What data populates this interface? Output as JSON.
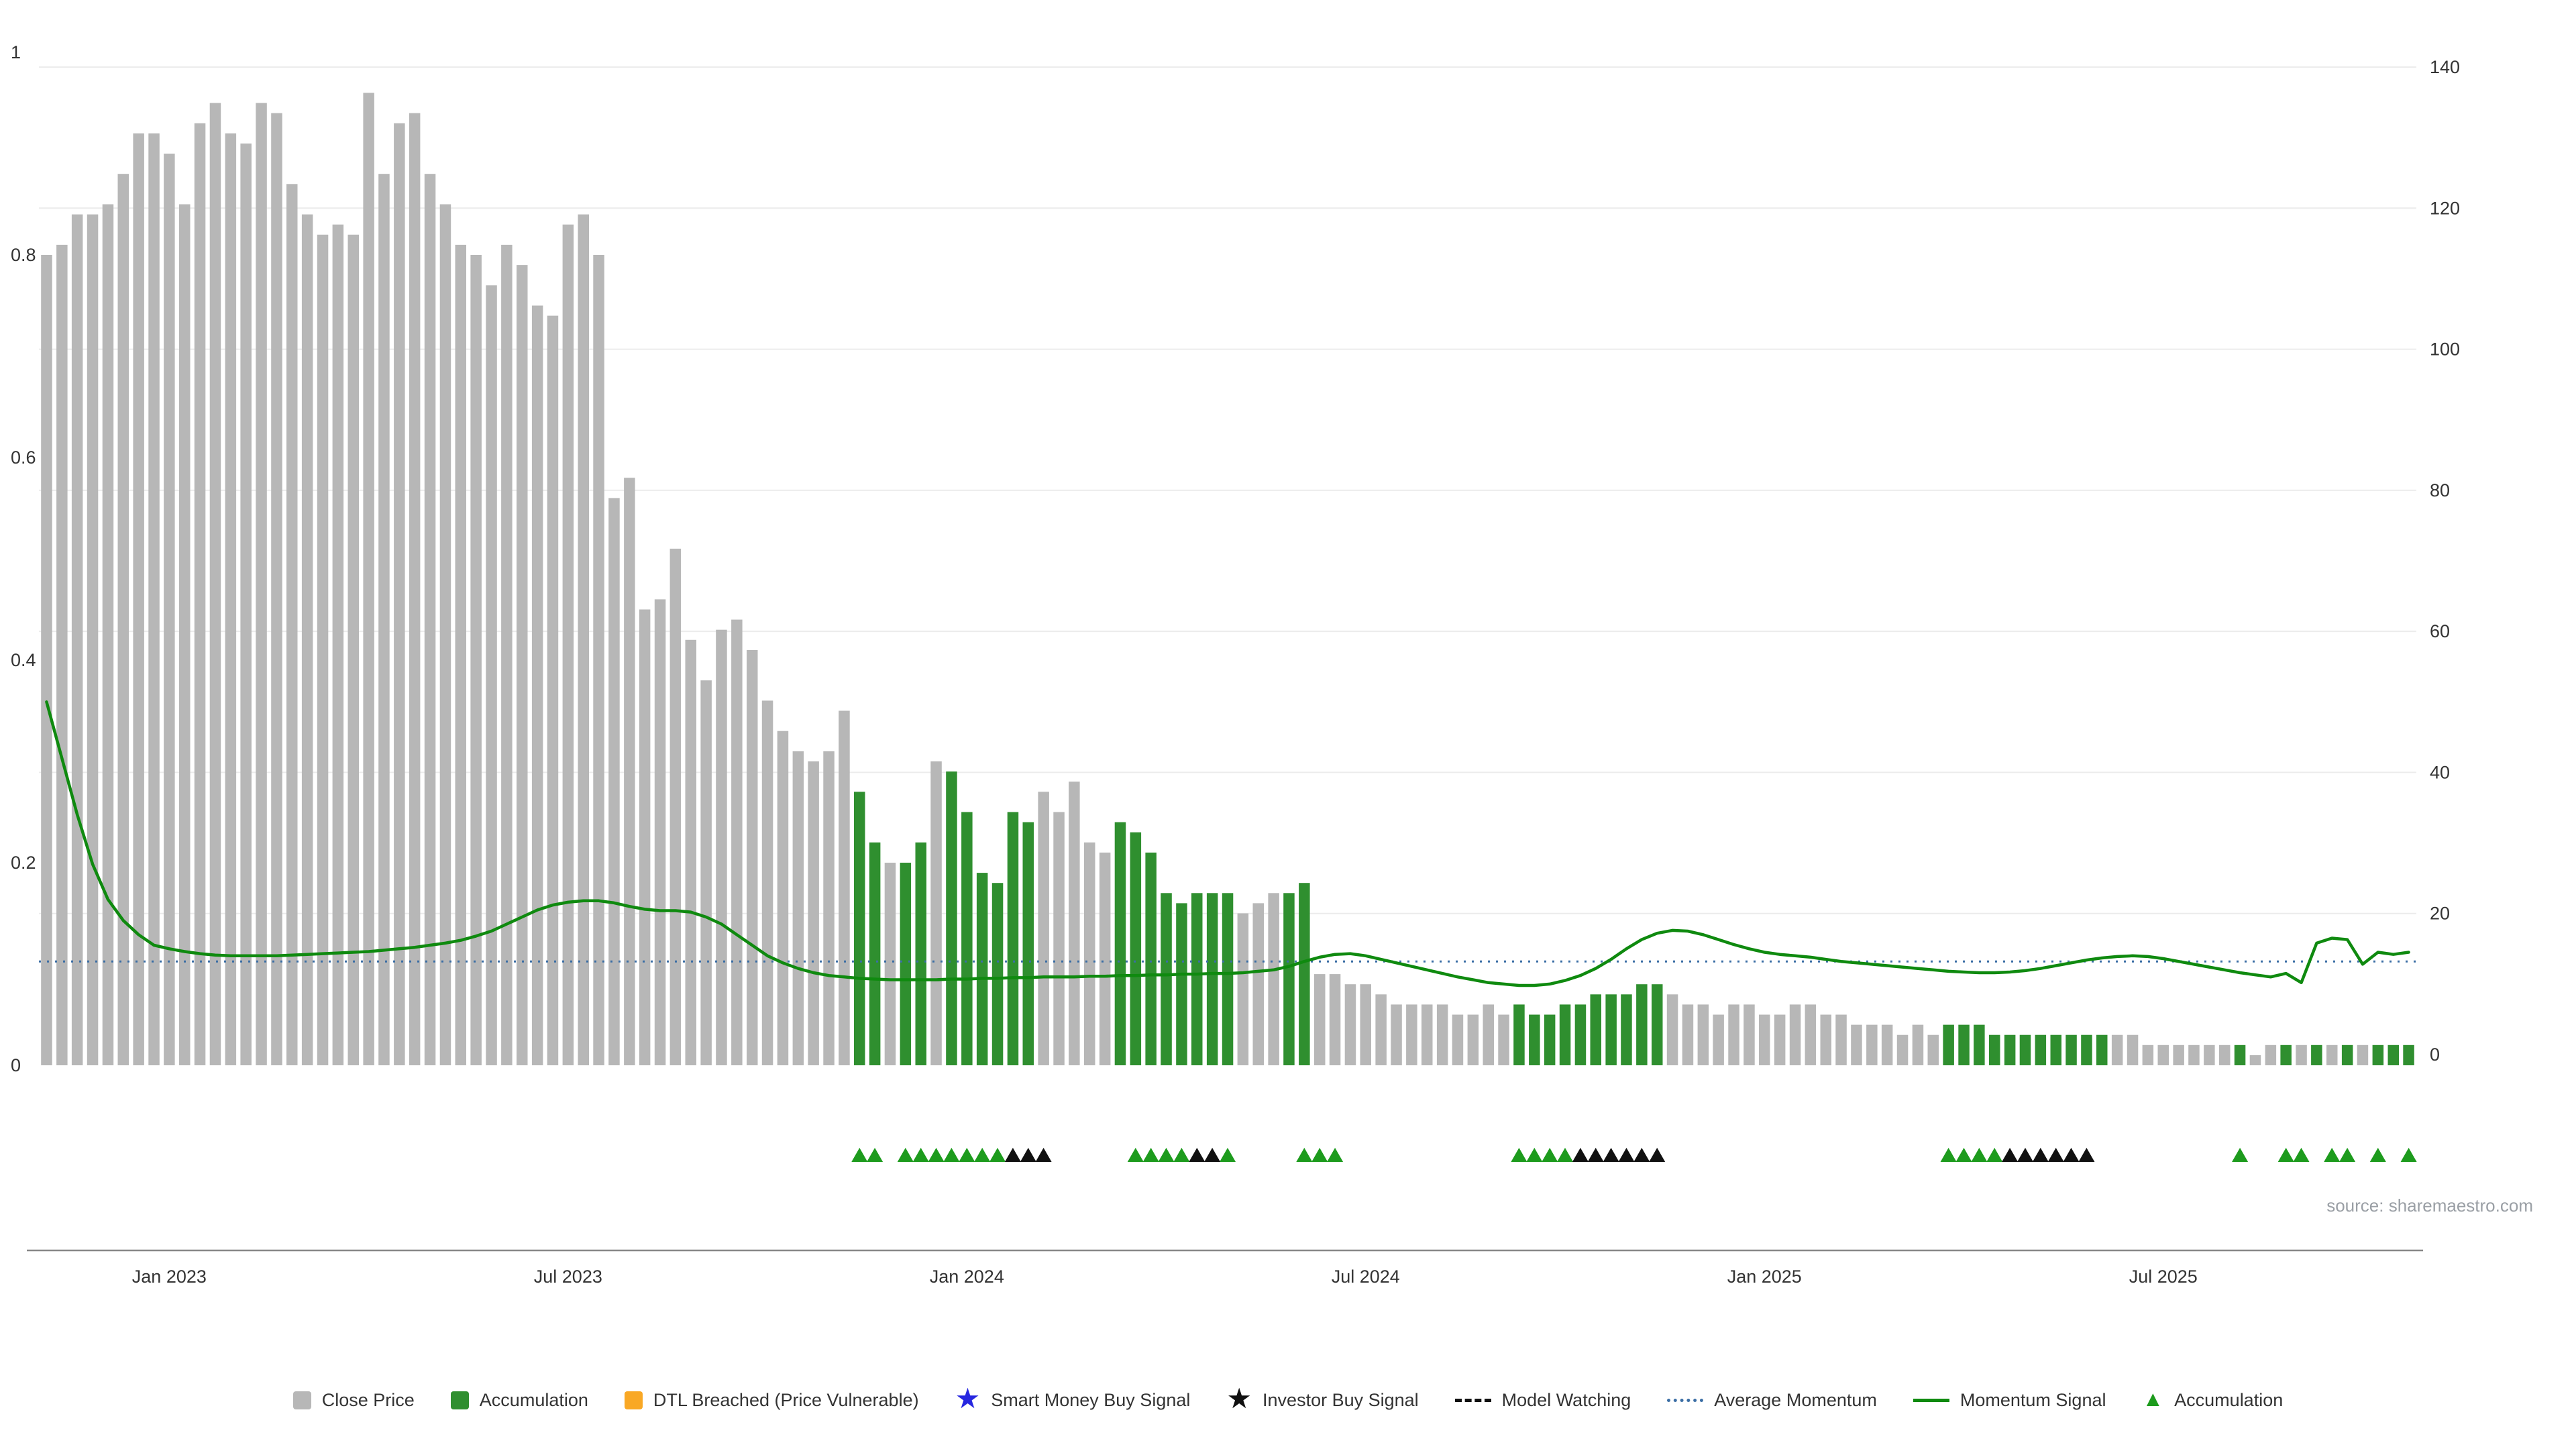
{
  "source": "source: sharemaestro.com",
  "colors": {
    "close_price": "#b7b7b7",
    "accumulation": "#2f8f2f",
    "accumulation_marker": "#1d9b1d",
    "dtl_breached": "#f9a825",
    "smart_money": "#2727e0",
    "investor": "#111111",
    "momentum_line": "#0f8a0f",
    "average_momentum": "#3b6ea5",
    "grid": "#ececec",
    "axis_line": "#888888",
    "axis_text": "#333333"
  },
  "legend": {
    "items": [
      {
        "label": "Close Price",
        "swatch": "square",
        "color": "#b7b7b7",
        "name": "close-price"
      },
      {
        "label": "Accumulation",
        "swatch": "square",
        "color": "#2f8f2f",
        "name": "accumulation-bar"
      },
      {
        "label": "DTL Breached (Price Vulnerable)",
        "swatch": "square",
        "color": "#f9a825",
        "name": "dtl-breached"
      },
      {
        "label": "Smart Money Buy Signal",
        "swatch": "star",
        "color": "#2727e0",
        "name": "smart-money-buy-signal"
      },
      {
        "label": "Investor Buy Signal",
        "swatch": "star",
        "color": "#111111",
        "name": "investor-buy-signal"
      },
      {
        "label": "Model Watching",
        "swatch": "dash",
        "color": "#111111",
        "name": "model-watching"
      },
      {
        "label": "Average Momentum",
        "swatch": "dotted",
        "color": "#3b6ea5",
        "name": "average-momentum"
      },
      {
        "label": "Momentum Signal",
        "swatch": "line",
        "color": "#0f8a0f",
        "name": "momentum-signal"
      },
      {
        "label": "Accumulation",
        "swatch": "triangle",
        "color": "#1d9b1d",
        "name": "accumulation-marker"
      }
    ]
  },
  "chart_data": {
    "type": "bar",
    "title": "",
    "xlabel": "",
    "ylabel_left": "",
    "ylabel_right": "",
    "left_axis": {
      "range": [
        0,
        1
      ],
      "ticks": [
        0,
        0.2,
        0.4,
        0.6,
        0.8,
        1
      ]
    },
    "right_axis": {
      "range": [
        0,
        140
      ],
      "ticks": [
        0,
        20,
        40,
        60,
        80,
        100,
        120,
        140
      ]
    },
    "x_ticks": [
      {
        "index": 8,
        "label": "Jan 2023"
      },
      {
        "index": 34,
        "label": "Jul 2023"
      },
      {
        "index": 60,
        "label": "Jan 2024"
      },
      {
        "index": 86,
        "label": "Jul 2024"
      },
      {
        "index": 112,
        "label": "Jan 2025"
      },
      {
        "index": 138,
        "label": "Jul 2025"
      }
    ],
    "bars": {
      "values": [
        0.8,
        0.81,
        0.84,
        0.84,
        0.85,
        0.88,
        0.92,
        0.92,
        0.9,
        0.85,
        0.93,
        0.95,
        0.92,
        0.91,
        0.95,
        0.94,
        0.87,
        0.84,
        0.82,
        0.83,
        0.82,
        0.96,
        0.88,
        0.93,
        0.94,
        0.88,
        0.85,
        0.81,
        0.8,
        0.77,
        0.81,
        0.79,
        0.75,
        0.74,
        0.83,
        0.84,
        0.8,
        0.56,
        0.58,
        0.45,
        0.46,
        0.51,
        0.42,
        0.38,
        0.43,
        0.44,
        0.41,
        0.36,
        0.33,
        0.31,
        0.3,
        0.31,
        0.35,
        0.27,
        0.22,
        0.2,
        0.2,
        0.22,
        0.3,
        0.29,
        0.25,
        0.19,
        0.18,
        0.25,
        0.24,
        0.27,
        0.25,
        0.28,
        0.22,
        0.21,
        0.24,
        0.23,
        0.21,
        0.17,
        0.16,
        0.17,
        0.17,
        0.17,
        0.15,
        0.16,
        0.17,
        0.17,
        0.18,
        0.09,
        0.09,
        0.08,
        0.08,
        0.07,
        0.06,
        0.06,
        0.06,
        0.06,
        0.05,
        0.05,
        0.06,
        0.05,
        0.06,
        0.05,
        0.05,
        0.06,
        0.06,
        0.07,
        0.07,
        0.07,
        0.08,
        0.08,
        0.07,
        0.06,
        0.06,
        0.05,
        0.06,
        0.06,
        0.05,
        0.05,
        0.06,
        0.06,
        0.05,
        0.05,
        0.04,
        0.04,
        0.04,
        0.03,
        0.04,
        0.03,
        0.04,
        0.04,
        0.04,
        0.03,
        0.03,
        0.03,
        0.03,
        0.03,
        0.03,
        0.03,
        0.03,
        0.03,
        0.03,
        0.02,
        0.02,
        0.02,
        0.02,
        0.02,
        0.02,
        0.02,
        0.01,
        0.02,
        0.02,
        0.02,
        0.02,
        0.02,
        0.02,
        0.02,
        0.02,
        0.02,
        0.02
      ],
      "accumulation_indices": [
        53,
        54,
        56,
        57,
        59,
        60,
        61,
        62,
        63,
        64,
        70,
        71,
        72,
        73,
        74,
        75,
        76,
        77,
        81,
        82,
        96,
        97,
        98,
        99,
        100,
        101,
        102,
        103,
        104,
        105,
        124,
        125,
        126,
        127,
        128,
        129,
        130,
        131,
        132,
        133,
        134,
        143,
        146,
        148,
        150,
        152,
        153,
        154
      ]
    },
    "momentum_signal": [
      50,
      42,
      34,
      27,
      22,
      19,
      17,
      15.5,
      15,
      14.6,
      14.3,
      14.1,
      14,
      14,
      14,
      14,
      14.1,
      14.2,
      14.3,
      14.4,
      14.5,
      14.6,
      14.8,
      15,
      15.2,
      15.5,
      15.8,
      16.2,
      16.8,
      17.5,
      18.5,
      19.5,
      20.5,
      21.2,
      21.6,
      21.8,
      21.8,
      21.5,
      21,
      20.6,
      20.4,
      20.4,
      20.2,
      19.5,
      18.5,
      17,
      15.5,
      14,
      13,
      12.2,
      11.6,
      11.2,
      11,
      10.8,
      10.7,
      10.6,
      10.6,
      10.6,
      10.6,
      10.7,
      10.7,
      10.8,
      10.8,
      10.9,
      10.9,
      11,
      11,
      11,
      11.1,
      11.1,
      11.2,
      11.2,
      11.3,
      11.3,
      11.4,
      11.4,
      11.5,
      11.5,
      11.6,
      11.8,
      12,
      12.5,
      13.2,
      13.8,
      14.2,
      14.3,
      14,
      13.5,
      13,
      12.5,
      12,
      11.5,
      11,
      10.6,
      10.2,
      10,
      9.8,
      9.8,
      10,
      10.5,
      11.2,
      12.2,
      13.5,
      15,
      16.3,
      17.2,
      17.6,
      17.5,
      17,
      16.3,
      15.6,
      15,
      14.5,
      14.2,
      14,
      13.8,
      13.5,
      13.2,
      13,
      12.8,
      12.6,
      12.4,
      12.2,
      12,
      11.8,
      11.7,
      11.6,
      11.6,
      11.7,
      11.9,
      12.2,
      12.6,
      13,
      13.4,
      13.7,
      13.9,
      14,
      13.9,
      13.6,
      13.2,
      12.8,
      12.4,
      12,
      11.6,
      11.3,
      11,
      11.5,
      10.2,
      15.8,
      16.5,
      16.3,
      12.8,
      14.5,
      14.2,
      14.5
    ],
    "average_momentum": 13.2,
    "markers": {
      "accumulation": [
        53,
        54,
        56,
        57,
        58,
        59,
        60,
        61,
        62,
        71,
        72,
        73,
        74,
        77,
        82,
        83,
        84,
        96,
        97,
        98,
        99,
        124,
        125,
        126,
        127,
        143,
        146,
        147,
        149,
        150,
        152,
        154
      ],
      "investor_buy": [
        63,
        64,
        65,
        75,
        76,
        100,
        101,
        102,
        103,
        104,
        105,
        128,
        129,
        130,
        131,
        132,
        133
      ]
    }
  }
}
